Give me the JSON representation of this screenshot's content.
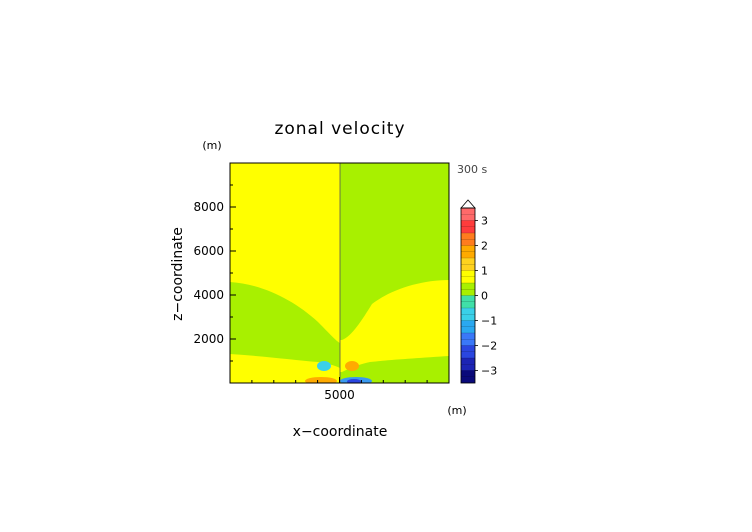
{
  "chart_data": {
    "type": "heatmap",
    "title": "zonal velocity",
    "xlabel": "x−coordinate",
    "ylabel": "z−coordinate",
    "x_unit": "(m)",
    "y_unit": "(m)",
    "time_label": "300 s",
    "xlim": [
      0,
      10000
    ],
    "ylim": [
      0,
      10000
    ],
    "x_ticks": [
      5000
    ],
    "x_tick_labels": [
      "5000"
    ],
    "y_ticks": [
      2000,
      4000,
      6000,
      8000
    ],
    "y_tick_labels": [
      "2000",
      "4000",
      "6000",
      "8000"
    ],
    "colorbar": {
      "levels": [
        -3.5,
        -3.0,
        -2.5,
        -2.0,
        -1.5,
        -1.0,
        -0.5,
        0.0,
        0.5,
        1.0,
        1.5,
        2.0,
        2.5,
        3.0,
        3.5
      ],
      "colors": [
        "#0a0a7a",
        "#1c24b4",
        "#2a46e0",
        "#3a78f8",
        "#2aa8f0",
        "#3ad0e8",
        "#40e0a8",
        "#a8f000",
        "#ffff00",
        "#ffd21e",
        "#ffaa00",
        "#ff7c1e",
        "#ff3c3c",
        "#ff6a6a",
        "#ffaaaa"
      ],
      "tick_values": [
        -3,
        -2,
        -1,
        0,
        1,
        2,
        3
      ],
      "tick_labels": [
        "−3",
        "−2",
        "−1",
        "0",
        "1",
        "2",
        "3"
      ]
    },
    "field_description_regions": [
      {
        "region": "left-upper",
        "x_range": [
          0,
          5000
        ],
        "level_range": [
          0,
          0.5
        ]
      },
      {
        "region": "right-upper",
        "x_range": [
          5000,
          10000
        ],
        "level_range": [
          -0.5,
          0
        ]
      },
      {
        "region": "positive-core-left-surface",
        "x": 4200,
        "z": 200,
        "value": 1.2
      },
      {
        "region": "negative-core-right-surface",
        "x": 5600,
        "z": 200,
        "value": -1.2
      },
      {
        "region": "negative-blob-left",
        "x": 4000,
        "z": 1000,
        "value": -0.8
      },
      {
        "region": "positive-blob-right",
        "x": 5500,
        "z": 1000,
        "value": 0.8
      }
    ]
  },
  "colors": {
    "yellow": "#ffff00",
    "green": "#a8f000",
    "orange": "#ffaa00",
    "cyan": "#3ad0e8",
    "blue": "#2a78f8",
    "axis": "#000000"
  }
}
